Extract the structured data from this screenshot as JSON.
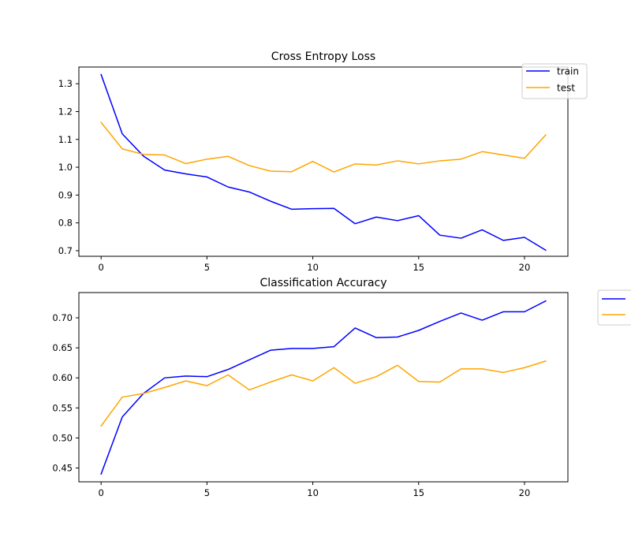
{
  "chart_data": [
    {
      "type": "line",
      "title": "Cross Entropy Loss",
      "xlabel": "",
      "ylabel": "",
      "xlim": [
        -1.05,
        22.05
      ],
      "ylim": [
        0.68,
        1.36
      ],
      "xticks": [
        0,
        5,
        10,
        15,
        20
      ],
      "yticks": [
        0.7,
        0.8,
        0.9,
        1.0,
        1.1,
        1.2,
        1.3
      ],
      "ytick_labels": [
        "0.7",
        "0.8",
        "0.9",
        "1.0",
        "1.1",
        "1.2",
        "1.3"
      ],
      "legend": {
        "placement": "top-right",
        "show_labels": true
      },
      "x": [
        0,
        1,
        2,
        3,
        4,
        5,
        6,
        7,
        8,
        9,
        10,
        11,
        12,
        13,
        14,
        15,
        16,
        17,
        18,
        19,
        20,
        21
      ],
      "series": [
        {
          "name": "train",
          "color": "#0000ff",
          "values": [
            1.333,
            1.12,
            1.04,
            0.99,
            0.976,
            0.965,
            0.929,
            0.911,
            0.878,
            0.849,
            0.851,
            0.852,
            0.797,
            0.821,
            0.808,
            0.826,
            0.756,
            0.745,
            0.775,
            0.737,
            0.748,
            0.702
          ]
        },
        {
          "name": "test",
          "color": "#ffa500",
          "values": [
            1.161,
            1.066,
            1.046,
            1.044,
            1.013,
            1.029,
            1.039,
            1.006,
            0.986,
            0.984,
            1.021,
            0.983,
            1.012,
            1.008,
            1.023,
            1.012,
            1.023,
            1.029,
            1.056,
            1.044,
            1.032,
            1.116
          ]
        }
      ]
    },
    {
      "type": "line",
      "title": "Classification Accuracy",
      "xlabel": "",
      "ylabel": "",
      "xlim": [
        -1.05,
        22.05
      ],
      "ylim": [
        0.427,
        0.742
      ],
      "xticks": [
        0,
        5,
        10,
        15,
        20
      ],
      "yticks": [
        0.45,
        0.5,
        0.55,
        0.6,
        0.65,
        0.7
      ],
      "ytick_labels": [
        "0.45",
        "0.50",
        "0.55",
        "0.60",
        "0.65",
        "0.70"
      ],
      "legend": {
        "placement": "outside-right",
        "show_labels": false
      },
      "x": [
        0,
        1,
        2,
        3,
        4,
        5,
        6,
        7,
        8,
        9,
        10,
        11,
        12,
        13,
        14,
        15,
        16,
        17,
        18,
        19,
        20,
        21
      ],
      "series": [
        {
          "name": "",
          "color": "#0000ff",
          "values": [
            0.44,
            0.535,
            0.574,
            0.6,
            0.603,
            0.602,
            0.614,
            0.63,
            0.646,
            0.649,
            0.649,
            0.652,
            0.683,
            0.667,
            0.668,
            0.679,
            0.694,
            0.708,
            0.696,
            0.71,
            0.71,
            0.728
          ]
        },
        {
          "name": "",
          "color": "#ffa500",
          "values": [
            0.52,
            0.568,
            0.574,
            0.584,
            0.595,
            0.587,
            0.605,
            0.58,
            0.593,
            0.605,
            0.595,
            0.617,
            0.591,
            0.602,
            0.621,
            0.594,
            0.593,
            0.615,
            0.615,
            0.609,
            0.617,
            0.628
          ]
        }
      ]
    }
  ]
}
